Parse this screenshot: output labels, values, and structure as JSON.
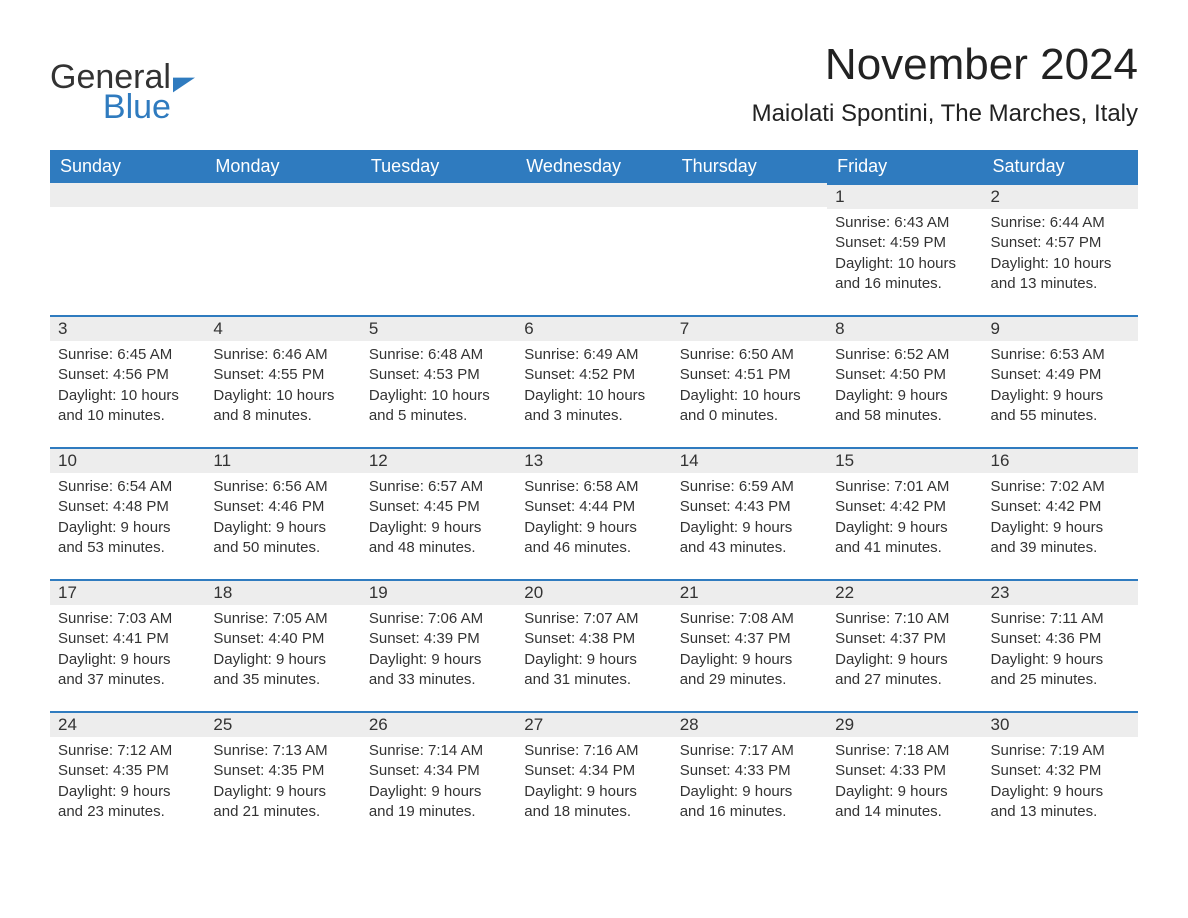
{
  "logo": {
    "text_general": "General",
    "text_blue": "Blue",
    "icon_color": "#2f7bbf"
  },
  "header": {
    "month_title": "November 2024",
    "location": "Maiolati Spontini, The Marches, Italy"
  },
  "styles": {
    "header_bg": "#2f7bbf",
    "header_text": "#ffffff",
    "daynum_bg": "#ededed",
    "daynum_border": "#2f7bbf",
    "body_text": "#333333",
    "page_bg": "#ffffff"
  },
  "calendar": {
    "type": "table",
    "columns": [
      "Sunday",
      "Monday",
      "Tuesday",
      "Wednesday",
      "Thursday",
      "Friday",
      "Saturday"
    ],
    "weeks": [
      [
        null,
        null,
        null,
        null,
        null,
        {
          "day": "1",
          "sunrise": "Sunrise: 6:43 AM",
          "sunset": "Sunset: 4:59 PM",
          "daylight": "Daylight: 10 hours and 16 minutes."
        },
        {
          "day": "2",
          "sunrise": "Sunrise: 6:44 AM",
          "sunset": "Sunset: 4:57 PM",
          "daylight": "Daylight: 10 hours and 13 minutes."
        }
      ],
      [
        {
          "day": "3",
          "sunrise": "Sunrise: 6:45 AM",
          "sunset": "Sunset: 4:56 PM",
          "daylight": "Daylight: 10 hours and 10 minutes."
        },
        {
          "day": "4",
          "sunrise": "Sunrise: 6:46 AM",
          "sunset": "Sunset: 4:55 PM",
          "daylight": "Daylight: 10 hours and 8 minutes."
        },
        {
          "day": "5",
          "sunrise": "Sunrise: 6:48 AM",
          "sunset": "Sunset: 4:53 PM",
          "daylight": "Daylight: 10 hours and 5 minutes."
        },
        {
          "day": "6",
          "sunrise": "Sunrise: 6:49 AM",
          "sunset": "Sunset: 4:52 PM",
          "daylight": "Daylight: 10 hours and 3 minutes."
        },
        {
          "day": "7",
          "sunrise": "Sunrise: 6:50 AM",
          "sunset": "Sunset: 4:51 PM",
          "daylight": "Daylight: 10 hours and 0 minutes."
        },
        {
          "day": "8",
          "sunrise": "Sunrise: 6:52 AM",
          "sunset": "Sunset: 4:50 PM",
          "daylight": "Daylight: 9 hours and 58 minutes."
        },
        {
          "day": "9",
          "sunrise": "Sunrise: 6:53 AM",
          "sunset": "Sunset: 4:49 PM",
          "daylight": "Daylight: 9 hours and 55 minutes."
        }
      ],
      [
        {
          "day": "10",
          "sunrise": "Sunrise: 6:54 AM",
          "sunset": "Sunset: 4:48 PM",
          "daylight": "Daylight: 9 hours and 53 minutes."
        },
        {
          "day": "11",
          "sunrise": "Sunrise: 6:56 AM",
          "sunset": "Sunset: 4:46 PM",
          "daylight": "Daylight: 9 hours and 50 minutes."
        },
        {
          "day": "12",
          "sunrise": "Sunrise: 6:57 AM",
          "sunset": "Sunset: 4:45 PM",
          "daylight": "Daylight: 9 hours and 48 minutes."
        },
        {
          "day": "13",
          "sunrise": "Sunrise: 6:58 AM",
          "sunset": "Sunset: 4:44 PM",
          "daylight": "Daylight: 9 hours and 46 minutes."
        },
        {
          "day": "14",
          "sunrise": "Sunrise: 6:59 AM",
          "sunset": "Sunset: 4:43 PM",
          "daylight": "Daylight: 9 hours and 43 minutes."
        },
        {
          "day": "15",
          "sunrise": "Sunrise: 7:01 AM",
          "sunset": "Sunset: 4:42 PM",
          "daylight": "Daylight: 9 hours and 41 minutes."
        },
        {
          "day": "16",
          "sunrise": "Sunrise: 7:02 AM",
          "sunset": "Sunset: 4:42 PM",
          "daylight": "Daylight: 9 hours and 39 minutes."
        }
      ],
      [
        {
          "day": "17",
          "sunrise": "Sunrise: 7:03 AM",
          "sunset": "Sunset: 4:41 PM",
          "daylight": "Daylight: 9 hours and 37 minutes."
        },
        {
          "day": "18",
          "sunrise": "Sunrise: 7:05 AM",
          "sunset": "Sunset: 4:40 PM",
          "daylight": "Daylight: 9 hours and 35 minutes."
        },
        {
          "day": "19",
          "sunrise": "Sunrise: 7:06 AM",
          "sunset": "Sunset: 4:39 PM",
          "daylight": "Daylight: 9 hours and 33 minutes."
        },
        {
          "day": "20",
          "sunrise": "Sunrise: 7:07 AM",
          "sunset": "Sunset: 4:38 PM",
          "daylight": "Daylight: 9 hours and 31 minutes."
        },
        {
          "day": "21",
          "sunrise": "Sunrise: 7:08 AM",
          "sunset": "Sunset: 4:37 PM",
          "daylight": "Daylight: 9 hours and 29 minutes."
        },
        {
          "day": "22",
          "sunrise": "Sunrise: 7:10 AM",
          "sunset": "Sunset: 4:37 PM",
          "daylight": "Daylight: 9 hours and 27 minutes."
        },
        {
          "day": "23",
          "sunrise": "Sunrise: 7:11 AM",
          "sunset": "Sunset: 4:36 PM",
          "daylight": "Daylight: 9 hours and 25 minutes."
        }
      ],
      [
        {
          "day": "24",
          "sunrise": "Sunrise: 7:12 AM",
          "sunset": "Sunset: 4:35 PM",
          "daylight": "Daylight: 9 hours and 23 minutes."
        },
        {
          "day": "25",
          "sunrise": "Sunrise: 7:13 AM",
          "sunset": "Sunset: 4:35 PM",
          "daylight": "Daylight: 9 hours and 21 minutes."
        },
        {
          "day": "26",
          "sunrise": "Sunrise: 7:14 AM",
          "sunset": "Sunset: 4:34 PM",
          "daylight": "Daylight: 9 hours and 19 minutes."
        },
        {
          "day": "27",
          "sunrise": "Sunrise: 7:16 AM",
          "sunset": "Sunset: 4:34 PM",
          "daylight": "Daylight: 9 hours and 18 minutes."
        },
        {
          "day": "28",
          "sunrise": "Sunrise: 7:17 AM",
          "sunset": "Sunset: 4:33 PM",
          "daylight": "Daylight: 9 hours and 16 minutes."
        },
        {
          "day": "29",
          "sunrise": "Sunrise: 7:18 AM",
          "sunset": "Sunset: 4:33 PM",
          "daylight": "Daylight: 9 hours and 14 minutes."
        },
        {
          "day": "30",
          "sunrise": "Sunrise: 7:19 AM",
          "sunset": "Sunset: 4:32 PM",
          "daylight": "Daylight: 9 hours and 13 minutes."
        }
      ]
    ]
  }
}
